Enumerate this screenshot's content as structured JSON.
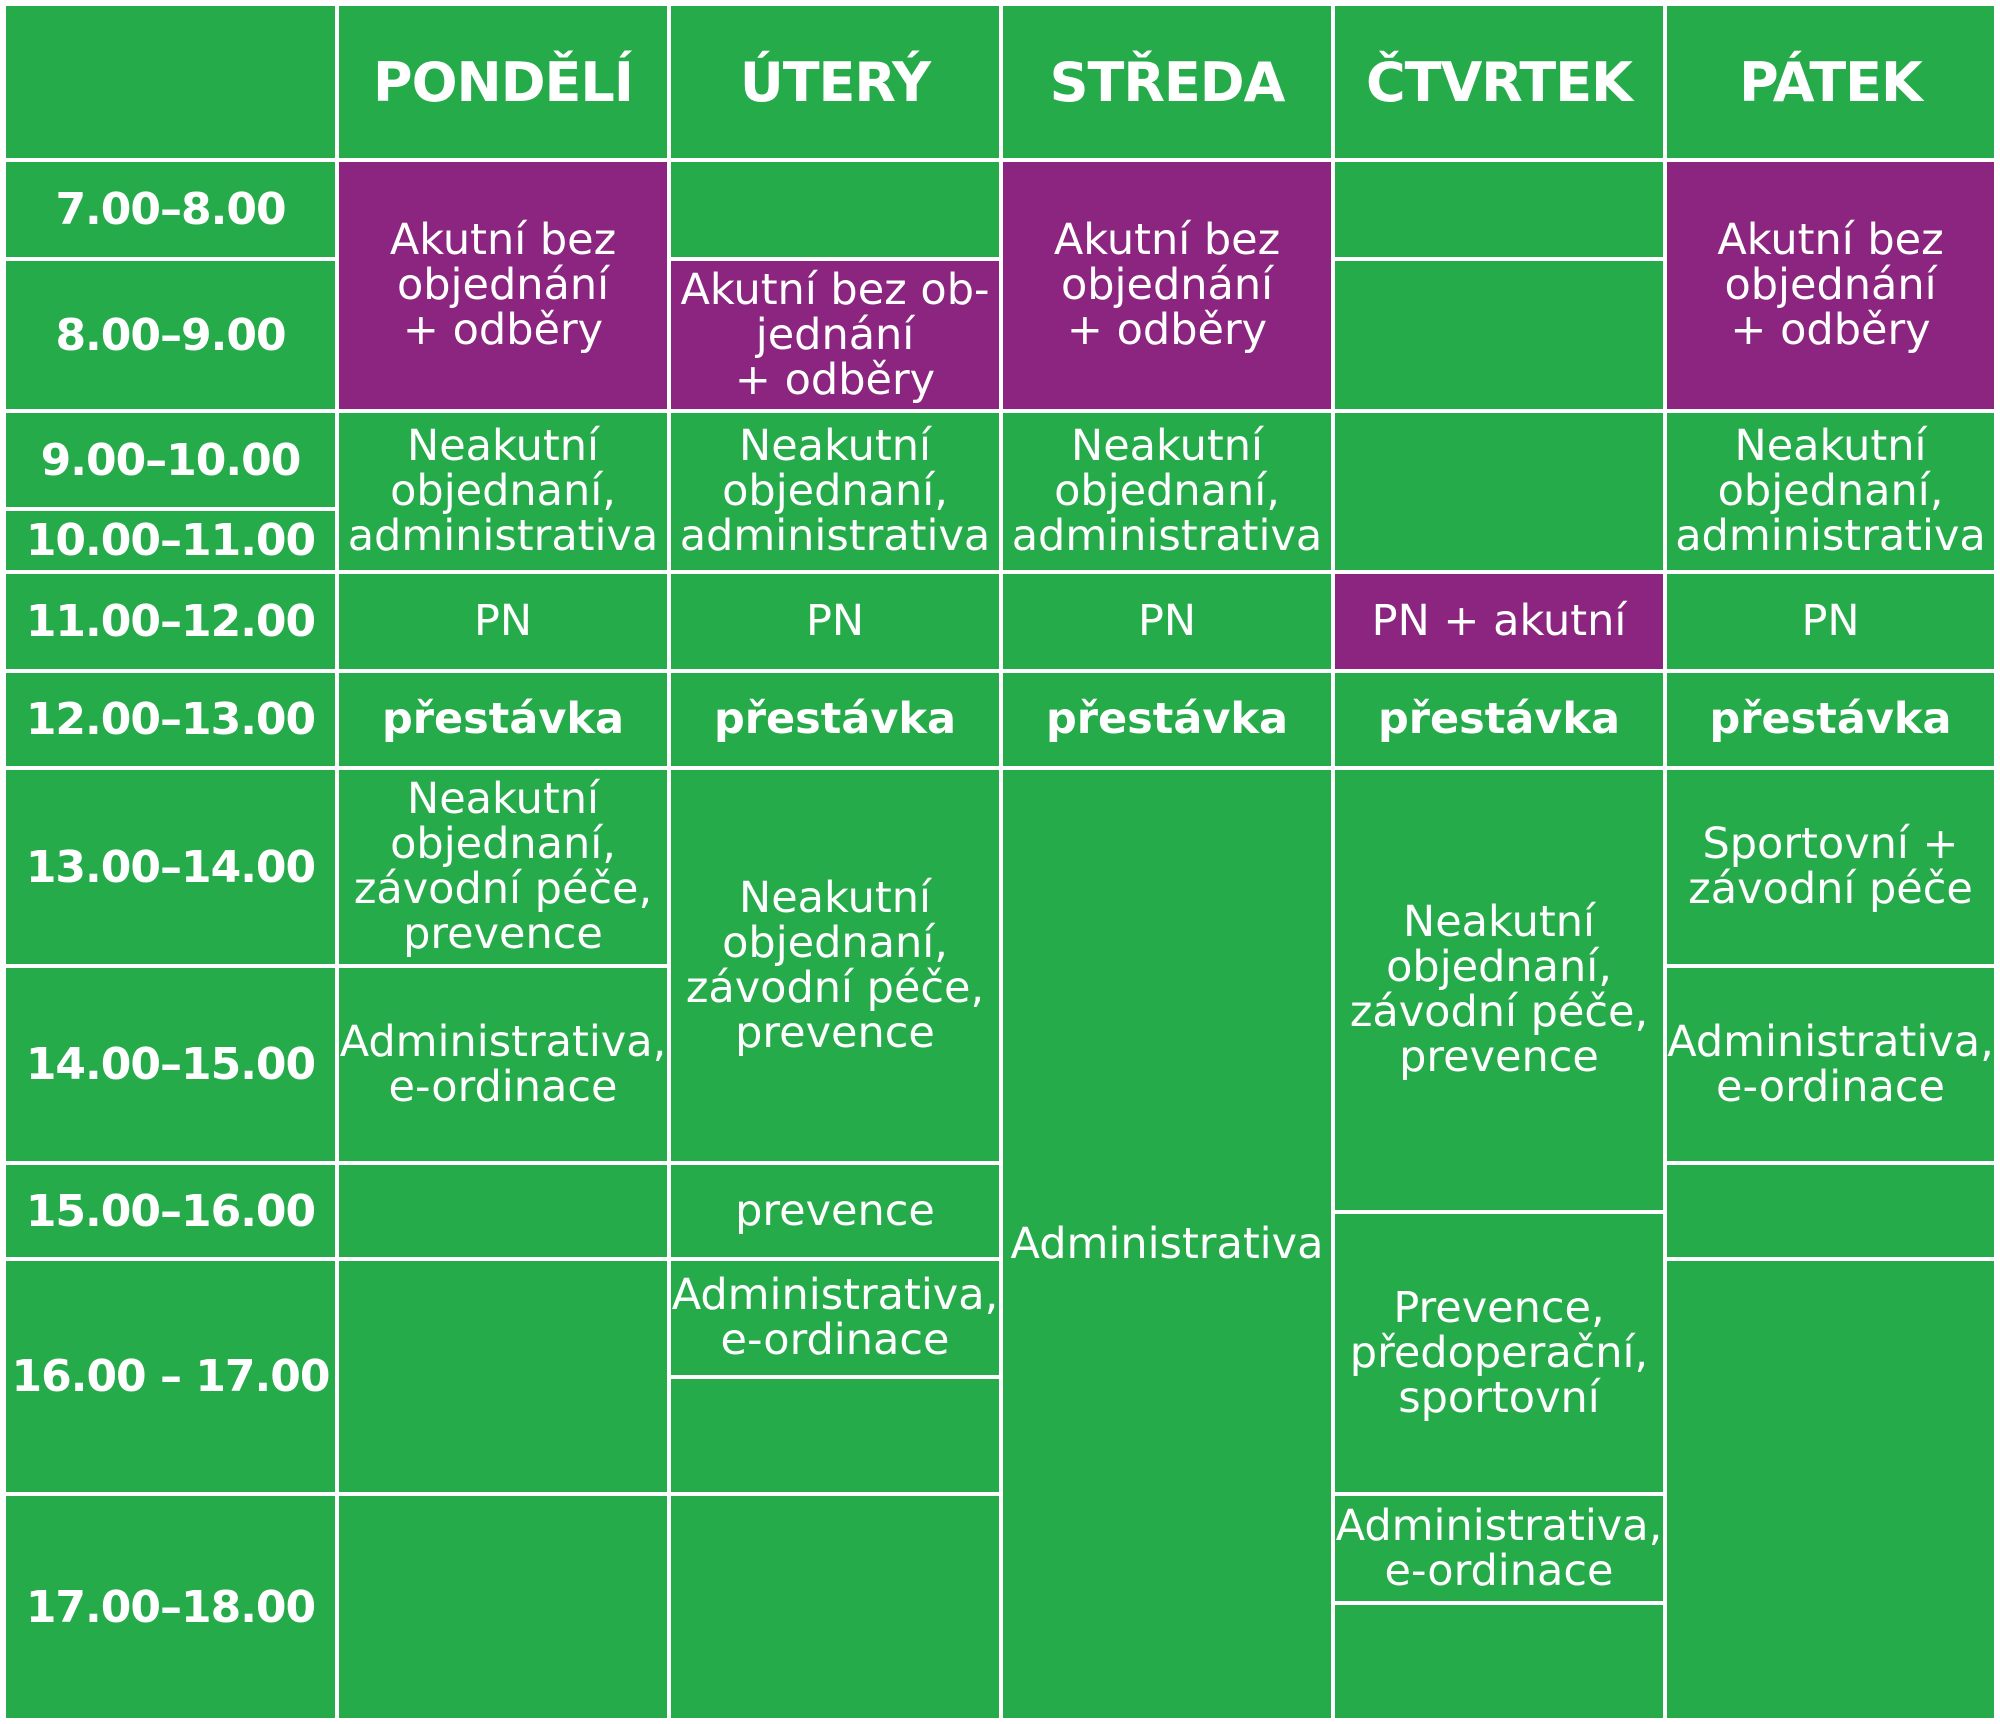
{
  "colors": {
    "green": "#26ab4b",
    "purple": "#8b2580",
    "grid_line": "#ffffff"
  },
  "header": {
    "corner": "",
    "days": [
      "PONDĚLÍ",
      "ÚTERÝ",
      "STŘEDA",
      "ČTVRTEK",
      "PÁTEK"
    ]
  },
  "times": [
    "7.00–8.00",
    "8.00–9.00",
    "9.00–10.00",
    "10.00–11.00",
    "11.00–12.00",
    "12.00–13.00",
    "13.00–14.00",
    "14.00–15.00",
    "15.00–16.00",
    "16.00 – 17.00",
    "17.00–18.00"
  ],
  "schedule": {
    "pondeli": {
      "akutni": "Akutní bez\nobjednání\n+ odběry",
      "neakutni_rano": "Neakutní\nobjednaní,\nadministrativa",
      "pn": "PN",
      "prestavka": "přestávka",
      "neakutni_odpoledne": "Neakutní\nobjednaní,\nzávodní péče,\nprevence",
      "administrativa": "Administrativa,\ne-ordinace"
    },
    "utery": {
      "akutni": "Akutní bez ob-\njednání\n+ odběry",
      "neakutni_rano": "Neakutní\nobjednaní,\nadministrativa",
      "pn": "PN",
      "prestavka": "přestávka",
      "neakutni_odpoledne": "Neakutní\nobjednaní,\nzávodní péče,\nprevence",
      "prevence": "prevence",
      "administrativa": "Administrativa,\ne-ordinace"
    },
    "streda": {
      "akutni": "Akutní bez\nobjednání\n+ odběry",
      "neakutni_rano": "Neakutní\nobjednaní,\nadministrativa",
      "pn": "PN",
      "prestavka": "přestávka",
      "administrativa": "Administrativa"
    },
    "ctvrtek": {
      "pn": "PN + akutní",
      "prestavka": "přestávka",
      "neakutni_odpoledne": "Neakutní\nobjednaní,\nzávodní péče,\nprevence",
      "prevence": "Prevence,\npředoperační,\nsportovní",
      "administrativa": "Administrativa,\ne-ordinace"
    },
    "patek": {
      "akutni": "Akutní bez\nobjednání\n+ odběry",
      "neakutni_rano": "Neakutní\nobjednaní,\nadministrativa",
      "pn": "PN",
      "prestavka": "přestávka",
      "sportovni": "Sportovní +\nzávodní péče",
      "administrativa": "Administrativa,\ne-ordinace"
    }
  }
}
